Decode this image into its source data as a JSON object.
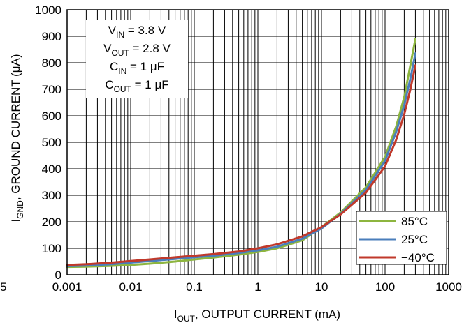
{
  "chart_data": {
    "type": "line",
    "x_scale": "log",
    "x_range": [
      0.001,
      1000
    ],
    "y_range": [
      0,
      1000
    ],
    "grid": true,
    "legend_position": "bottom-right",
    "x_ticks": [
      {
        "v": 0.001,
        "label": "0.001"
      },
      {
        "v": 0.01,
        "label": "0.01"
      },
      {
        "v": 0.1,
        "label": "0.1"
      },
      {
        "v": 1,
        "label": "1"
      },
      {
        "v": 10,
        "label": "10"
      },
      {
        "v": 100,
        "label": "100"
      },
      {
        "v": 1000,
        "label": "1000"
      }
    ],
    "y_ticks": [
      {
        "v": 0,
        "label": "0"
      },
      {
        "v": 100,
        "label": "100"
      },
      {
        "v": 200,
        "label": "200"
      },
      {
        "v": 300,
        "label": "300"
      },
      {
        "v": 400,
        "label": "400"
      },
      {
        "v": 500,
        "label": "500"
      },
      {
        "v": 600,
        "label": "600"
      },
      {
        "v": 700,
        "label": "700"
      },
      {
        "v": 800,
        "label": "800"
      },
      {
        "v": 900,
        "label": "900"
      },
      {
        "v": 1000,
        "label": "1000"
      }
    ],
    "stray_label": "5",
    "xlabel": {
      "main": "I",
      "sub": "OUT",
      "rest": ", OUTPUT CURRENT (mA)"
    },
    "ylabel": {
      "main": "I",
      "sub": "GND",
      "rest": ", GROUND CURRENT (μA)"
    },
    "conditions": [
      {
        "main": "V",
        "sub": "IN",
        "rest": " = 3.8 V"
      },
      {
        "main": "V",
        "sub": "OUT",
        "rest": " = 2.8 V"
      },
      {
        "main": "C",
        "sub": "IN",
        "rest": " = 1 μF"
      },
      {
        "main": "C",
        "sub": "OUT",
        "rest": " = 1 μF"
      }
    ],
    "series": [
      {
        "name": "85°C",
        "color": "#8db53f",
        "x": [
          0.001,
          0.002,
          0.005,
          0.01,
          0.02,
          0.05,
          0.1,
          0.2,
          0.5,
          1,
          2,
          5,
          10,
          20,
          50,
          100,
          150,
          200,
          250,
          300
        ],
        "y": [
          30,
          31,
          34,
          37,
          42,
          50,
          58,
          65,
          76,
          86,
          100,
          130,
          180,
          235,
          330,
          445,
          560,
          670,
          790,
          890
        ]
      },
      {
        "name": "25°C",
        "color": "#4a7ebb",
        "x": [
          0.001,
          0.002,
          0.005,
          0.01,
          0.02,
          0.05,
          0.1,
          0.2,
          0.5,
          1,
          2,
          5,
          10,
          20,
          50,
          100,
          150,
          200,
          250,
          300
        ],
        "y": [
          33,
          35,
          40,
          46,
          52,
          60,
          66,
          72,
          82,
          92,
          106,
          136,
          175,
          230,
          320,
          430,
          540,
          640,
          740,
          835
        ]
      },
      {
        "name": "−40°C",
        "color": "#c0392b",
        "x": [
          0.001,
          0.002,
          0.005,
          0.01,
          0.02,
          0.05,
          0.1,
          0.2,
          0.5,
          1,
          2,
          5,
          10,
          20,
          50,
          100,
          150,
          200,
          250,
          300
        ],
        "y": [
          37,
          40,
          46,
          52,
          58,
          66,
          72,
          78,
          88,
          100,
          115,
          145,
          180,
          228,
          310,
          410,
          510,
          605,
          700,
          790
        ]
      }
    ]
  }
}
